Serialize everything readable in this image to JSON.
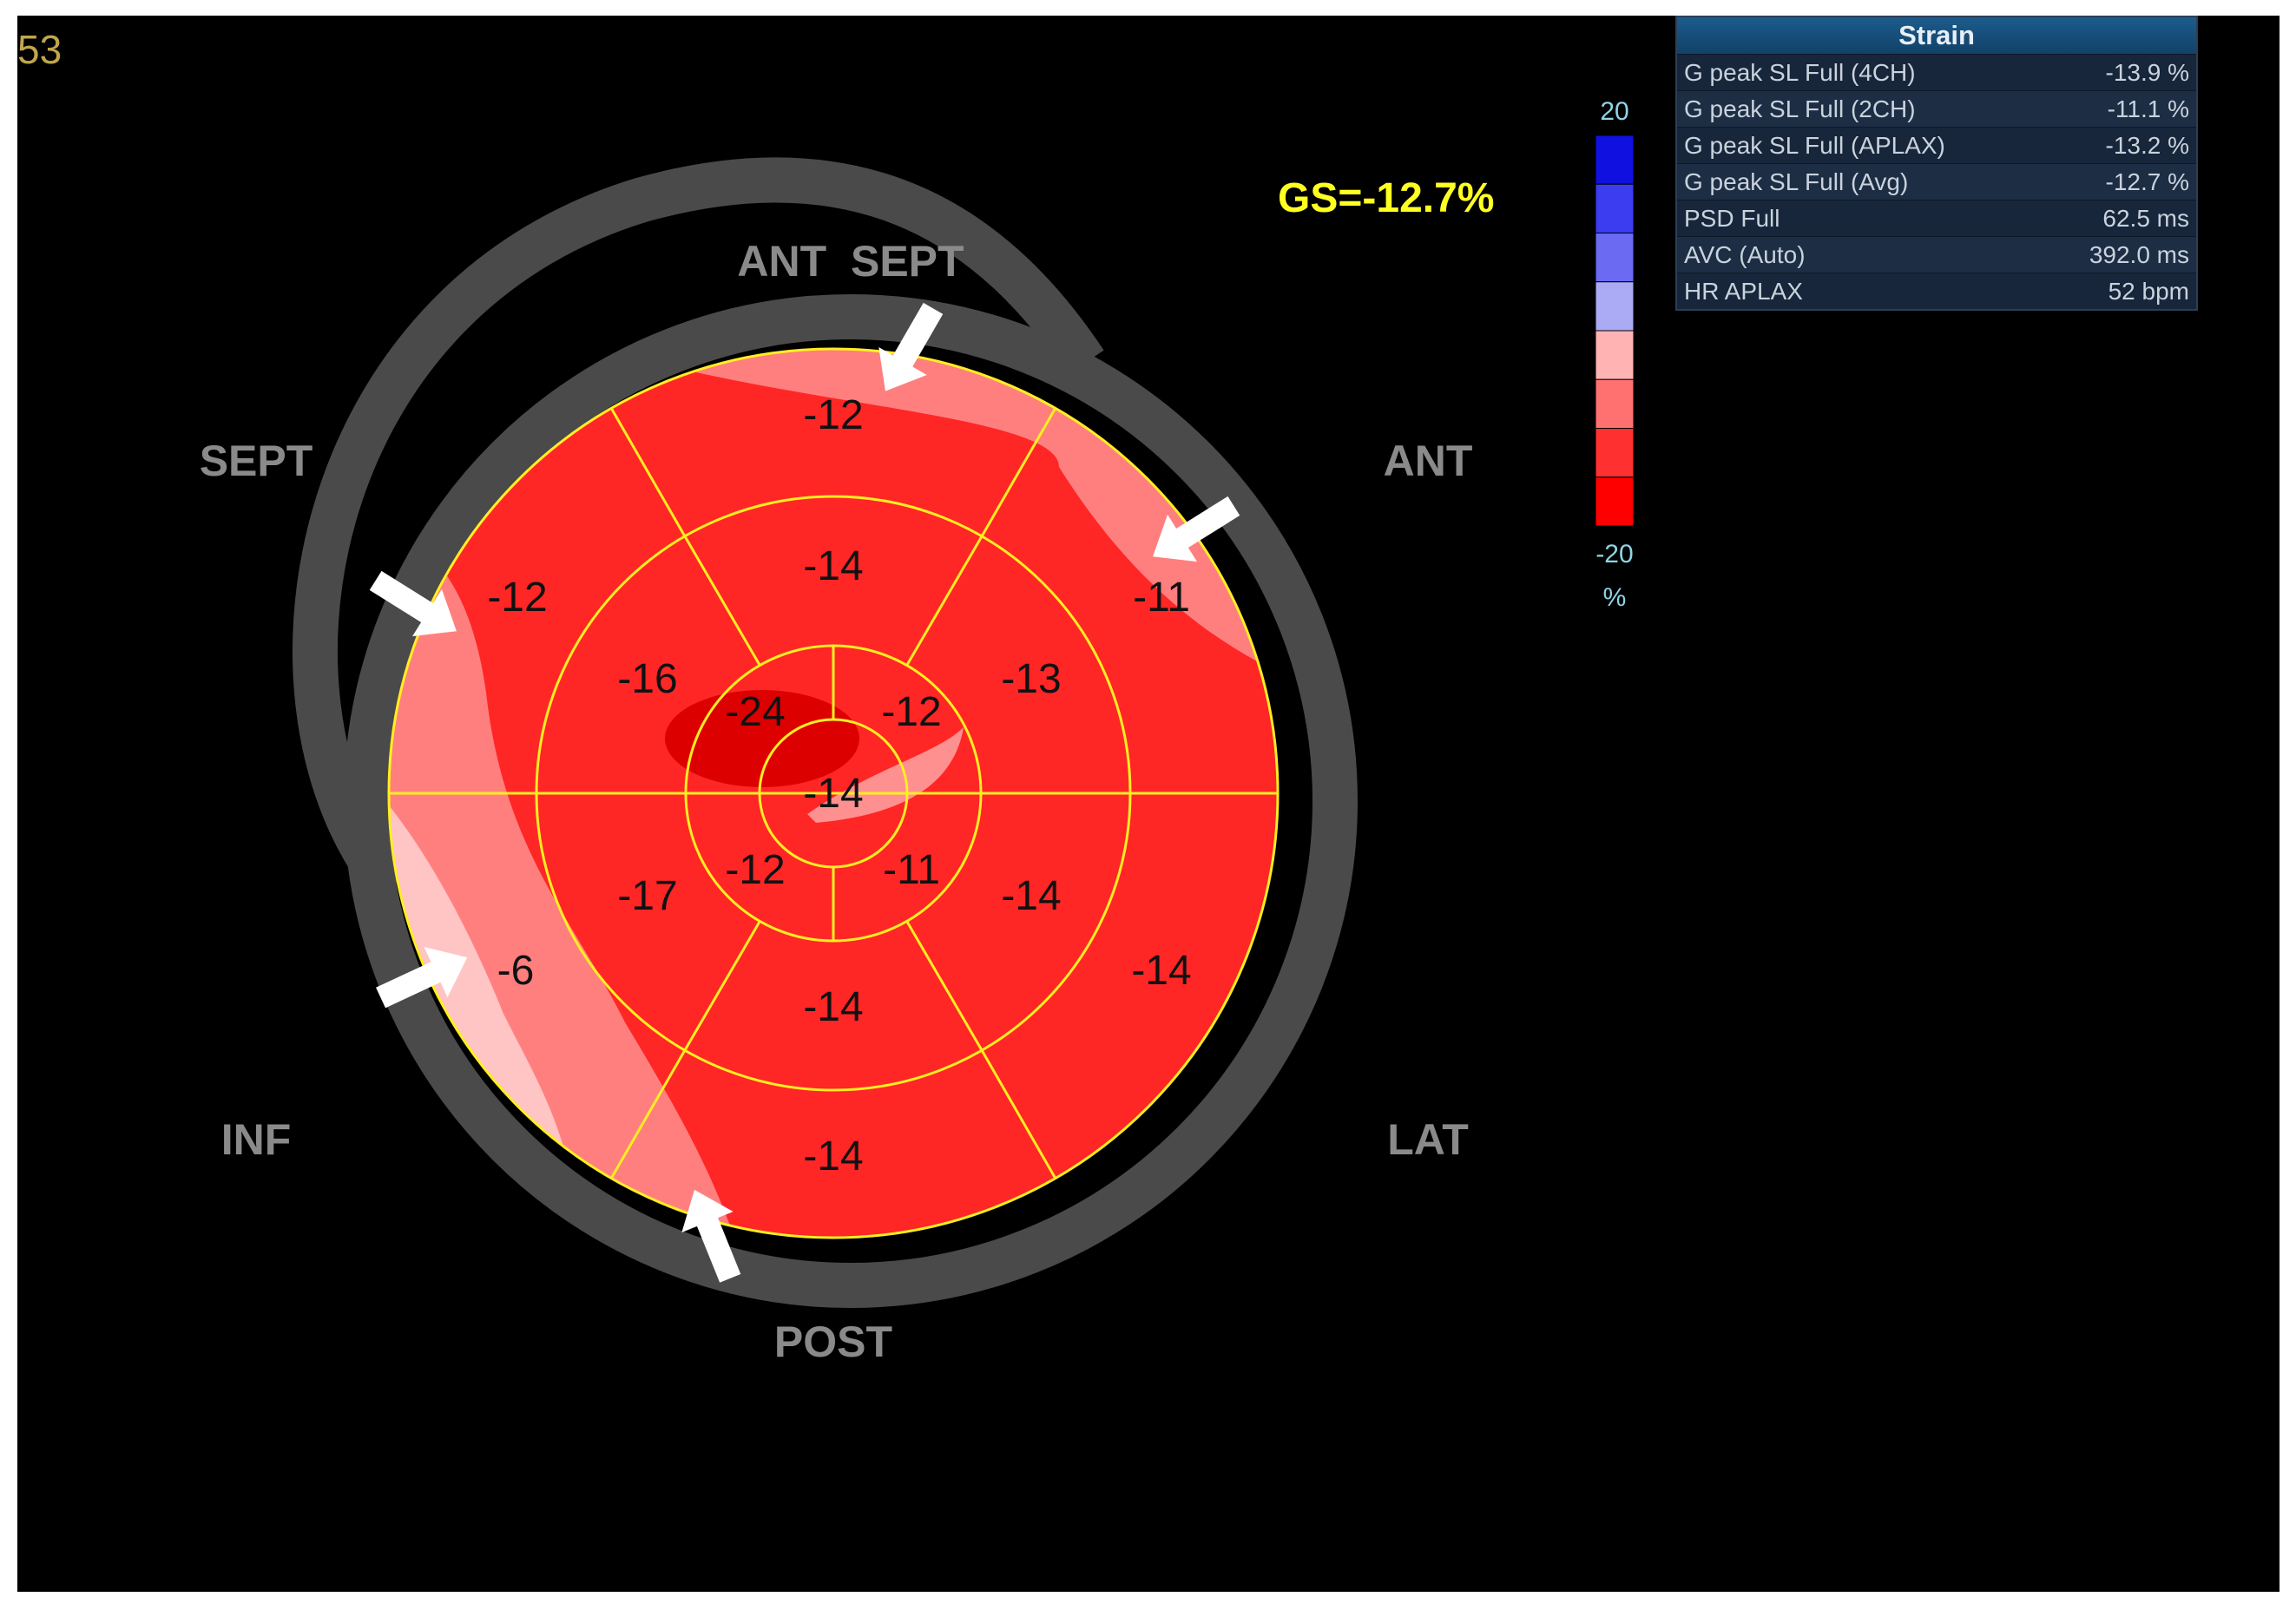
{
  "frame_id": "53",
  "global_strain": "GS=-12.7%",
  "orientation_labels": {
    "ant_sept": "ANT  SEPT",
    "sept": "SEPT",
    "ant": "ANT",
    "inf": "INF",
    "lat": "LAT",
    "post": "POST"
  },
  "colorbar": {
    "max": "20",
    "min": "-20",
    "unit": "%",
    "steps": [
      "#1010e0",
      "#3c3cf0",
      "#6a6af2",
      "#aaaaf5",
      "#ffb3b3",
      "#ff7070",
      "#ff3030",
      "#ff0000"
    ]
  },
  "segments": {
    "basal": [
      "-12",
      "-11",
      "-14",
      "-14",
      "-6",
      "-12"
    ],
    "mid": [
      "-14",
      "-13",
      "-14",
      "-14",
      "-17",
      "-16"
    ],
    "apical": [
      "-12",
      "-11",
      "-12",
      "-24"
    ],
    "apex": "-14"
  },
  "colors": {
    "segment_fill": "#ff2626",
    "light_zone": "#ff7f7f",
    "lighter_zone": "#ffc4c4",
    "dark_zone": "#dd0000",
    "ring": "#4a4a4a",
    "grid_lines": "#ffee22",
    "label_gray": "#8a8a8a",
    "gs_text": "#ffff22"
  },
  "strain_panel": {
    "title": "Strain",
    "rows": [
      {
        "label": "G peak SL Full (4CH)",
        "value": "-13.9 %"
      },
      {
        "label": "G peak SL Full (2CH)",
        "value": "-11.1 %"
      },
      {
        "label": "G peak SL Full (APLAX)",
        "value": "-13.2 %"
      },
      {
        "label": "G peak SL Full (Avg)",
        "value": "-12.7 %"
      },
      {
        "label": "PSD Full",
        "value": "62.5 ms"
      },
      {
        "label": "AVC (Auto)",
        "value": "392.0 ms"
      },
      {
        "label": "HR APLAX",
        "value": "52 bpm"
      }
    ]
  }
}
